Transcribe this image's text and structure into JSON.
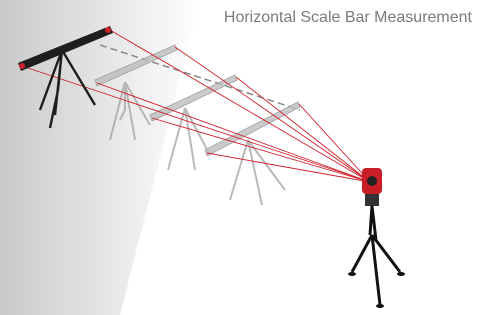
{
  "title": "Horizontal Scale Bar Measurement"
}
